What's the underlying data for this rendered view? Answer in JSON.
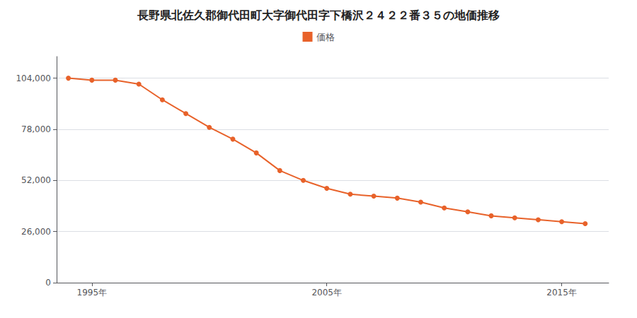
{
  "chart_data": {
    "type": "line",
    "title": "長野県北佐久郡御代田町大字御代田字下橋沢２４２２番３５の地価推移",
    "x": [
      1994,
      1995,
      1996,
      1997,
      1998,
      1999,
      2000,
      2001,
      2002,
      2003,
      2004,
      2005,
      2006,
      2007,
      2008,
      2009,
      2010,
      2011,
      2012,
      2013,
      2014,
      2015,
      2016
    ],
    "series": [
      {
        "name": "価格",
        "color": "#e8622a",
        "marker": "circle",
        "values": [
          104000,
          103000,
          103000,
          101000,
          93000,
          86000,
          79000,
          73000,
          66000,
          57000,
          52000,
          48000,
          45000,
          44000,
          43000,
          41000,
          38000,
          36000,
          34000,
          33000,
          32000,
          31000,
          30000
        ]
      }
    ],
    "xlim": [
      1993.5,
      2017
    ],
    "xticks": [
      {
        "value": 1995,
        "label": "1995年"
      },
      {
        "value": 2005,
        "label": "2005年"
      },
      {
        "value": 2015,
        "label": "2015年"
      }
    ],
    "ylim": [
      0,
      115000
    ],
    "yticks": [
      0,
      {
        "value": 26000,
        "label": "26,000"
      },
      {
        "value": 52000,
        "label": "52,000"
      },
      {
        "value": 78000,
        "label": "78,000"
      },
      {
        "value": 104000,
        "label": "104,000"
      }
    ],
    "grid": true,
    "legend": "top"
  }
}
